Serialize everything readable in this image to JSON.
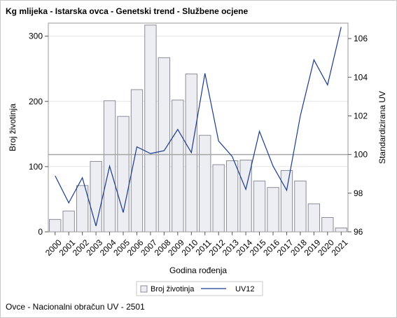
{
  "title": "Kg mlijeka - Istarska ovca - Genetski trend - Službene ocjene",
  "footnote": "Ovce - Nacionalni obračun UV - 2501",
  "chart_data": {
    "type": "bar+line",
    "categories": [
      "2000",
      "2001",
      "2002",
      "2003",
      "2004",
      "2005",
      "2006",
      "2007",
      "2008",
      "2009",
      "2010",
      "2011",
      "2012",
      "2013",
      "2014",
      "2015",
      "2016",
      "2017",
      "2018",
      "2019",
      "2020",
      "2021"
    ],
    "series": [
      {
        "name": "Broj životinja",
        "type": "bar",
        "axis": "left",
        "values": [
          19,
          32,
          71,
          108,
          201,
          177,
          218,
          317,
          267,
          202,
          242,
          148,
          103,
          109,
          110,
          78,
          68,
          94,
          78,
          43,
          22,
          6
        ]
      },
      {
        "name": "UV12",
        "type": "line",
        "axis": "right",
        "values": [
          98.9,
          97.5,
          98.8,
          96.3,
          99.4,
          97.0,
          100.4,
          100.05,
          100.2,
          101.3,
          100.1,
          104.2,
          100.7,
          99.9,
          98.2,
          101.2,
          99.4,
          98.15,
          102.0,
          104.9,
          103.6,
          106.6
        ]
      }
    ],
    "xlabel": "Godina rođenja",
    "ylabel": "Broj životinja",
    "y2label": "Standardizirana UV",
    "ylim": [
      0,
      320
    ],
    "yticks": [
      0,
      100,
      200,
      300
    ],
    "y2lim": [
      96,
      106.8
    ],
    "y2ticks": [
      96,
      98,
      100,
      102,
      104,
      106
    ],
    "reference_line_y2": 100,
    "grid": true,
    "legend": "bottom-center",
    "colors": {
      "bar_fill": "#edeef3",
      "bar_stroke": "#8c8c98",
      "line": "#1a3a8c",
      "reference": "#a6a6a6",
      "grid": "#e4e4e4"
    }
  }
}
